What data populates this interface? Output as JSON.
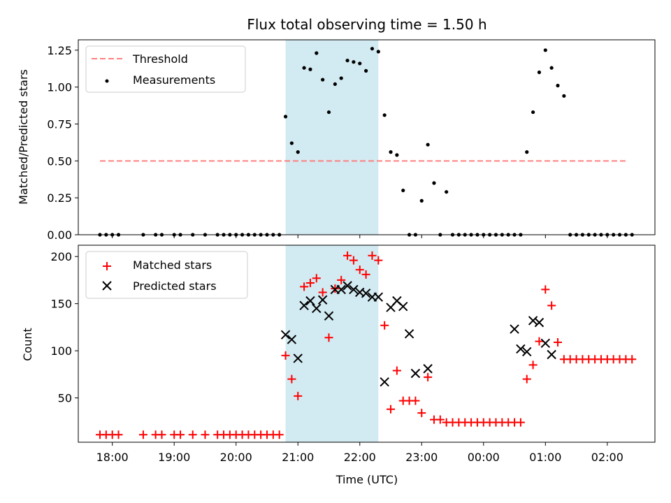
{
  "chart_data": {
    "title": "Flux total observing time = 1.50 h",
    "xlabel": "Time (UTC)",
    "x_ticks": [
      "18:00",
      "19:00",
      "20:00",
      "21:00",
      "22:00",
      "23:00",
      "00:00",
      "01:00",
      "02:00"
    ],
    "x_range_hours": [
      17.45,
      26.77
    ],
    "shaded_span": {
      "start": "20:48",
      "end": "22:18",
      "color": "#add8e6"
    },
    "top": {
      "type": "scatter",
      "ylabel": "Matched/Predicted stars",
      "ylim": [
        0,
        1.32
      ],
      "yticks": [
        "0.00",
        "0.25",
        "0.50",
        "0.75",
        "1.00",
        "1.25"
      ],
      "legend_position": "top-left",
      "threshold": {
        "name": "Threshold",
        "value": 0.5,
        "x_start": "17:48",
        "x_end": "02:20",
        "color": "#ff7f7f"
      },
      "measurements": {
        "name": "Measurements",
        "color": "#000000",
        "x": [
          "17:48",
          "17:54",
          "18:00",
          "18:06",
          "18:30",
          "18:42",
          "18:48",
          "19:00",
          "19:06",
          "19:18",
          "19:30",
          "19:42",
          "19:48",
          "19:54",
          "20:00",
          "20:06",
          "20:12",
          "20:18",
          "20:24",
          "20:30",
          "20:36",
          "20:42",
          "20:48",
          "20:54",
          "21:00",
          "21:06",
          "21:12",
          "21:18",
          "21:24",
          "21:30",
          "21:36",
          "21:42",
          "21:48",
          "21:54",
          "22:00",
          "22:06",
          "22:12",
          "22:18",
          "22:24",
          "22:30",
          "22:36",
          "22:42",
          "22:48",
          "22:54",
          "23:00",
          "23:06",
          "23:12",
          "23:18",
          "23:24",
          "23:30",
          "23:36",
          "23:42",
          "23:48",
          "23:54",
          "00:00",
          "00:06",
          "00:12",
          "00:18",
          "00:24",
          "00:30",
          "00:36",
          "00:42",
          "00:48",
          "00:54",
          "01:00",
          "01:06",
          "01:12",
          "01:18",
          "01:24",
          "01:30",
          "01:36",
          "01:42",
          "01:48",
          "01:54",
          "02:00",
          "02:06",
          "02:12",
          "02:18",
          "02:24"
        ],
        "y": [
          0,
          0,
          0,
          0,
          0,
          0,
          0,
          0,
          0,
          0,
          0,
          0,
          0,
          0,
          0,
          0,
          0,
          0,
          0,
          0,
          0,
          0,
          0.8,
          0.62,
          0.56,
          1.13,
          1.12,
          1.23,
          1.05,
          0.83,
          1.02,
          1.06,
          1.18,
          1.17,
          1.16,
          1.11,
          1.26,
          1.24,
          0.81,
          0.56,
          0.54,
          0.3,
          0,
          0,
          0.23,
          0.61,
          0.35,
          0,
          0.29,
          0,
          0,
          0,
          0,
          0,
          0,
          0,
          0,
          0,
          0,
          0,
          0,
          0.56,
          0.83,
          1.1,
          1.25,
          1.13,
          1.01,
          0.94,
          0,
          0,
          0,
          0,
          0,
          0,
          0,
          0,
          0,
          0,
          0
        ]
      }
    },
    "bottom": {
      "type": "scatter",
      "ylabel": "Count",
      "ylim": [
        3,
        212
      ],
      "yticks": [
        "50",
        "100",
        "150",
        "200"
      ],
      "legend_position": "top-left",
      "matched": {
        "name": "Matched stars",
        "color": "#ff0000",
        "marker": "plus",
        "x": [
          "17:48",
          "17:54",
          "18:00",
          "18:06",
          "18:30",
          "18:42",
          "18:48",
          "19:00",
          "19:06",
          "19:18",
          "19:30",
          "19:42",
          "19:48",
          "19:54",
          "20:00",
          "20:06",
          "20:12",
          "20:18",
          "20:24",
          "20:30",
          "20:36",
          "20:42",
          "20:48",
          "20:54",
          "21:00",
          "21:06",
          "21:12",
          "21:18",
          "21:24",
          "21:30",
          "21:36",
          "21:42",
          "21:48",
          "21:54",
          "22:00",
          "22:06",
          "22:12",
          "22:18",
          "22:24",
          "22:30",
          "22:36",
          "22:42",
          "22:48",
          "22:54",
          "23:00",
          "23:06",
          "23:12",
          "23:18",
          "23:24",
          "23:30",
          "23:36",
          "23:42",
          "23:48",
          "23:54",
          "00:00",
          "00:06",
          "00:12",
          "00:18",
          "00:24",
          "00:30",
          "00:36",
          "00:42",
          "00:48",
          "00:54",
          "01:00",
          "01:06",
          "01:12",
          "01:18",
          "01:24",
          "01:30",
          "01:36",
          "01:42",
          "01:48",
          "01:54",
          "02:00",
          "02:06",
          "02:12",
          "02:18",
          "02:24"
        ],
        "y": [
          11,
          11,
          11,
          11,
          11,
          11,
          11,
          11,
          11,
          11,
          11,
          11,
          11,
          11,
          11,
          11,
          11,
          11,
          11,
          11,
          11,
          11,
          95,
          70,
          52,
          168,
          172,
          177,
          162,
          114,
          166,
          175,
          201,
          196,
          186,
          181,
          201,
          196,
          127,
          38,
          79,
          47,
          47,
          47,
          34,
          72,
          27,
          27,
          24,
          24,
          24,
          24,
          24,
          24,
          24,
          24,
          24,
          24,
          24,
          24,
          24,
          70,
          85,
          110,
          165,
          148,
          109,
          91,
          91,
          91,
          91,
          91,
          91,
          91,
          91,
          91,
          91,
          91,
          91
        ]
      },
      "predicted": {
        "name": "Predicted stars",
        "color": "#000000",
        "marker": "x",
        "x": [
          "20:48",
          "20:54",
          "21:00",
          "21:06",
          "21:12",
          "21:18",
          "21:24",
          "21:30",
          "21:36",
          "21:42",
          "21:48",
          "21:54",
          "22:00",
          "22:06",
          "22:12",
          "22:18",
          "22:24",
          "22:30",
          "22:36",
          "22:42",
          "22:48",
          "22:54",
          "23:06",
          "23:18",
          "23:30",
          "23:42",
          "23:54",
          "00:06",
          "00:18",
          "00:30",
          "00:36",
          "00:42",
          "00:48",
          "00:54",
          "01:00",
          "01:06",
          "01:12",
          "01:18",
          "01:24",
          "01:30",
          "01:36",
          "01:42",
          "01:48",
          "01:54",
          "02:00",
          "02:06",
          "02:12",
          "02:18",
          "02:24"
        ],
        "y": [
          117,
          112,
          92,
          148,
          153,
          145,
          154,
          137,
          165,
          165,
          169,
          165,
          162,
          161,
          157,
          157,
          67,
          146,
          153,
          147,
          118,
          76,
          81,
          null,
          null,
          null,
          null,
          null,
          null,
          123,
          102,
          99,
          132,
          130,
          108,
          96,
          null,
          null,
          null,
          null,
          null,
          null,
          null,
          null,
          null,
          null,
          null,
          null,
          null
        ]
      }
    }
  }
}
